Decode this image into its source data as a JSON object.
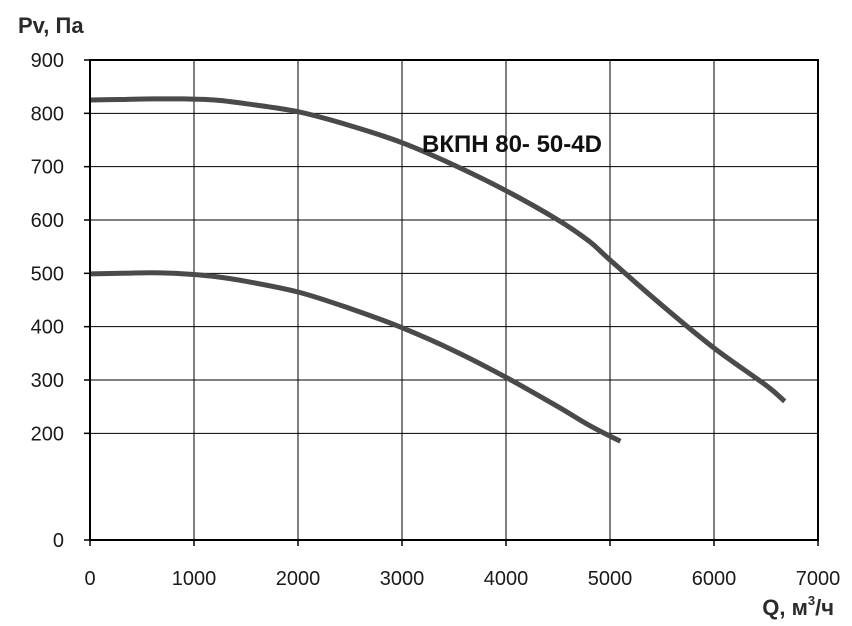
{
  "chart_data": {
    "type": "line",
    "title": "",
    "ylabel": "Pv, Па",
    "xlabel_main": "Q, м",
    "xlabel_sup": "3",
    "xlabel_tail": "/ч",
    "annotation": "ВКПН 80- 50-4D",
    "xlim": [
      0,
      7000
    ],
    "ylim": [
      0,
      900
    ],
    "x_ticks": [
      "0",
      "1000",
      "2000",
      "3000",
      "4000",
      "5000",
      "6000",
      "7000"
    ],
    "y_ticks": [
      "0",
      "200",
      "300",
      "400",
      "500",
      "600",
      "700",
      "800",
      "900"
    ],
    "grid": true,
    "colors": {
      "curve": "#4a4a4a",
      "grid": "#000000",
      "frame": "#000000"
    },
    "series": [
      {
        "x": [
          0,
          300,
          600,
          900,
          1200,
          1500,
          2000,
          2500,
          3000,
          3500,
          4000,
          4500,
          4800,
          5000,
          5500,
          6000,
          6500,
          6680
        ],
        "y": [
          825,
          826,
          827,
          827,
          825,
          818,
          803,
          777,
          745,
          703,
          655,
          600,
          560,
          525,
          440,
          360,
          290,
          260
        ]
      },
      {
        "x": [
          0,
          300,
          600,
          900,
          1200,
          1500,
          2000,
          2500,
          3000,
          3500,
          4000,
          4500,
          4800,
          5100
        ],
        "y": [
          499,
          500,
          501,
          499,
          494,
          485,
          465,
          434,
          398,
          355,
          305,
          250,
          215,
          185
        ]
      }
    ]
  }
}
